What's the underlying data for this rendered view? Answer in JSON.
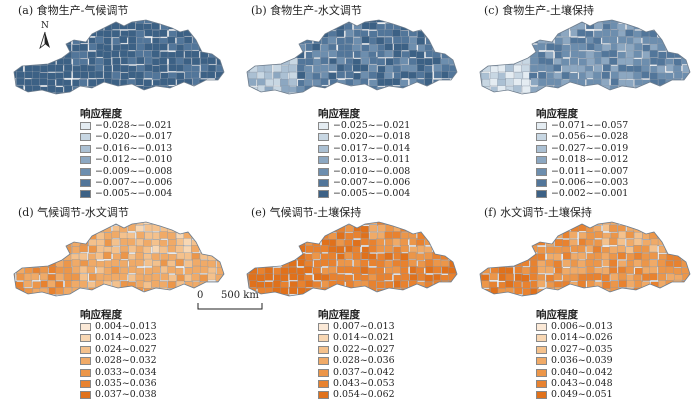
{
  "colors": {
    "blue": [
      "#e4ecf2",
      "#c8d7e3",
      "#abc0d3",
      "#8ca7c1",
      "#6d8eae",
      "#52769a",
      "#3c6185"
    ],
    "orange": [
      "#fbe9d7",
      "#f8d7b3",
      "#f4c18c",
      "#f0aa67",
      "#ec9649",
      "#e8822f",
      "#e0711b"
    ],
    "boundary": "#8a98a8"
  },
  "legend_title": "响应程度",
  "north_label": "N",
  "scale": {
    "zero": "0",
    "label": "500 km"
  },
  "panels": [
    {
      "title": "(a) 食物生产-气候调节",
      "palette": "blue",
      "dominant": 6,
      "legend": [
        "−0.028~−0.021",
        "−0.020~−0.017",
        "−0.016~−0.013",
        "−0.012~−0.010",
        "−0.009~−0.008",
        "−0.007~−0.006",
        "−0.005~−0.004"
      ]
    },
    {
      "title": "(b) 食物生产-水文调节",
      "palette": "blue",
      "dominant": 5,
      "legend": [
        "−0.025~−0.021",
        "−0.020~−0.018",
        "−0.017~−0.014",
        "−0.013~−0.011",
        "−0.010~−0.008",
        "−0.007~−0.006",
        "−0.005~−0.004"
      ]
    },
    {
      "title": "(c) 食物生产-土壤保持",
      "palette": "blue",
      "dominant": 4,
      "legend": [
        "−0.071~−0.057",
        "−0.056~−0.028",
        "−0.027~−0.019",
        "−0.018~−0.012",
        "−0.011~−0.007",
        "−0.006~−0.003",
        "−0.002~−0.001"
      ]
    },
    {
      "title": "(d) 气候调节-水文调节",
      "palette": "orange",
      "dominant": 3,
      "legend": [
        "0.004~0.013",
        "0.014~0.023",
        "0.024~0.027",
        "0.028~0.032",
        "0.033~0.034",
        "0.035~0.036",
        "0.037~0.038"
      ]
    },
    {
      "title": "(e) 气候调节-土壤保持",
      "palette": "orange",
      "dominant": 5,
      "legend": [
        "0.007~0.013",
        "0.014~0.021",
        "0.022~0.027",
        "0.028~0.036",
        "0.037~0.042",
        "0.043~0.053",
        "0.054~0.062"
      ]
    },
    {
      "title": "(f) 水文调节-土壤保持",
      "palette": "orange",
      "dominant": 4,
      "legend": [
        "0.006~0.013",
        "0.014~0.026",
        "0.027~0.035",
        "0.036~0.039",
        "0.040~0.042",
        "0.043~0.048",
        "0.049~0.051"
      ]
    }
  ]
}
